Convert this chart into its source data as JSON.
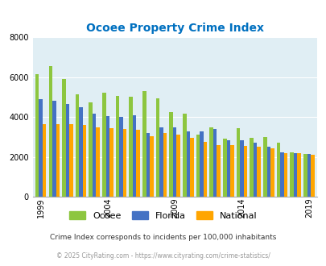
{
  "title": "Ocoee Property Crime Index",
  "years": [
    1999,
    2000,
    2001,
    2002,
    2003,
    2004,
    2005,
    2006,
    2007,
    2008,
    2009,
    2010,
    2011,
    2012,
    2013,
    2014,
    2015,
    2016,
    2017,
    2018,
    2019
  ],
  "ocoee": [
    6150,
    6550,
    5900,
    5150,
    4750,
    5200,
    5050,
    5000,
    5300,
    4950,
    4250,
    4150,
    3100,
    3500,
    2900,
    3450,
    2950,
    3000,
    2700,
    2250,
    2150
  ],
  "florida": [
    4900,
    4800,
    4650,
    4500,
    4150,
    4050,
    4000,
    4100,
    3200,
    3500,
    3500,
    3300,
    3300,
    3400,
    2850,
    2850,
    2700,
    2500,
    2250,
    2200,
    2150
  ],
  "national": [
    3650,
    3650,
    3650,
    3600,
    3500,
    3450,
    3400,
    3350,
    3050,
    3200,
    3100,
    2950,
    2750,
    2600,
    2600,
    2550,
    2500,
    2450,
    2200,
    2200,
    2100
  ],
  "bar_colors": {
    "ocoee": "#8DC63F",
    "florida": "#4472C4",
    "national": "#FFA500"
  },
  "plot_bg": "#E0EEF4",
  "ylim": [
    0,
    8000
  ],
  "yticks": [
    0,
    2000,
    4000,
    6000,
    8000
  ],
  "xlabel_ticks": [
    1999,
    2004,
    2009,
    2014,
    2019
  ],
  "legend_labels": [
    "Ocoee",
    "Florida",
    "National"
  ],
  "caption1": "Crime Index corresponds to incidents per 100,000 inhabitants",
  "caption2": "© 2025 CityRating.com - https://www.cityrating.com/crime-statistics/",
  "title_color": "#0070C0",
  "caption1_color": "#333333",
  "caption2_color": "#999999",
  "bar_width": 0.27
}
